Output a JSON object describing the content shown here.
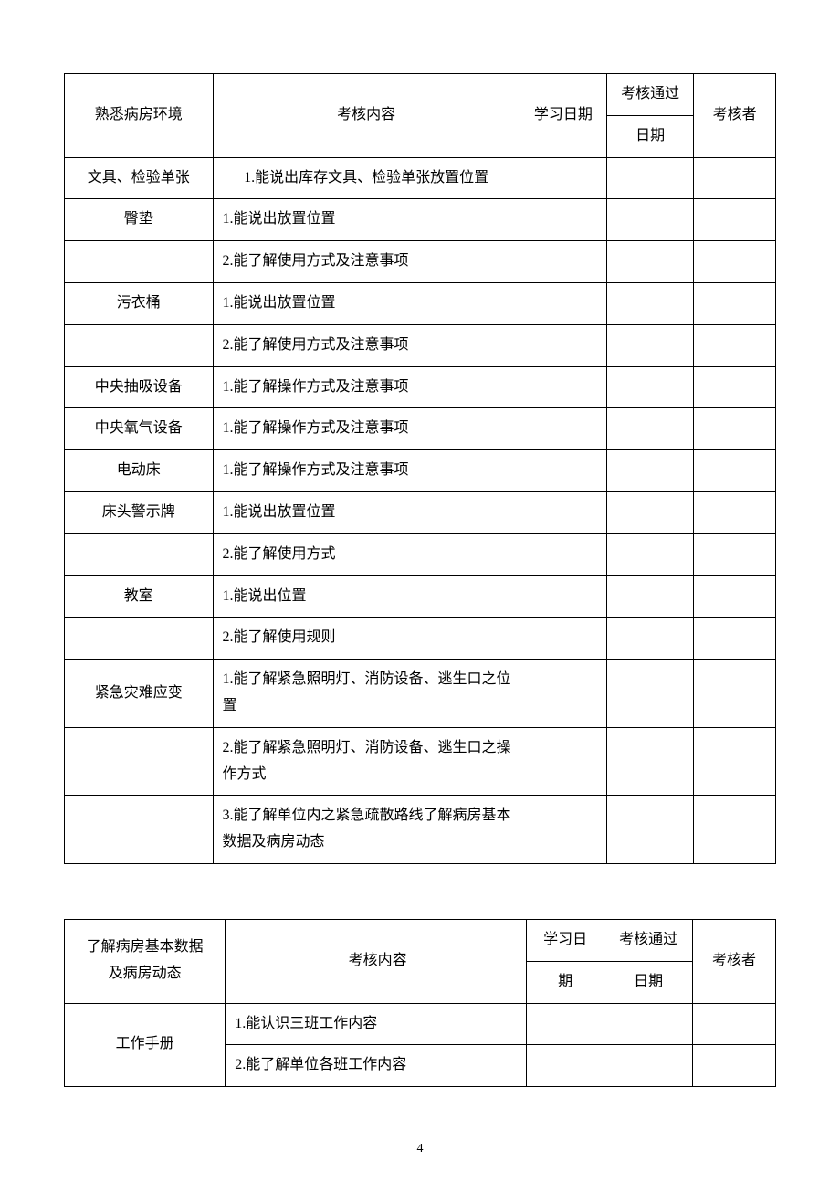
{
  "table1": {
    "headers": {
      "category": "熟悉病房环境",
      "content": "考核内容",
      "study_date": "学习日期",
      "pass_date_line1": "考核通过",
      "pass_date_line2": "日期",
      "assessor": "考核者"
    },
    "rows": [
      {
        "category": "文具、检验单张",
        "content": "1.能说出库存文具、检验单张放置位置",
        "center": true
      },
      {
        "category": "臀垫",
        "content": "1.能说出放置位置"
      },
      {
        "category": "",
        "content": "2.能了解使用方式及注意事项"
      },
      {
        "category": "污衣桶",
        "content": "1.能说出放置位置"
      },
      {
        "category": "",
        "content": "2.能了解使用方式及注意事项"
      },
      {
        "category": "中央抽吸设备",
        "content": "1.能了解操作方式及注意事项"
      },
      {
        "category": "中央氧气设备",
        "content": "1.能了解操作方式及注意事项"
      },
      {
        "category": "电动床",
        "content": "1.能了解操作方式及注意事项"
      },
      {
        "category": "床头警示牌",
        "content": "1.能说出放置位置"
      },
      {
        "category": "",
        "content": "2.能了解使用方式"
      },
      {
        "category": "教室",
        "content": "1.能说出位置"
      },
      {
        "category": "",
        "content": "2.能了解使用规则"
      },
      {
        "category": "紧急灾难应变",
        "content": "1.能了解紧急照明灯、消防设备、逃生口之位置"
      },
      {
        "category": "",
        "content": "2.能了解紧急照明灯、消防设备、逃生口之操作方式"
      },
      {
        "category": "",
        "content": "3.能了解单位内之紧急疏散路线了解病房基本数据及病房动态"
      }
    ]
  },
  "table2": {
    "headers": {
      "category_line1": "了解病房基本数据",
      "category_line2": "及病房动态",
      "content": "考核内容",
      "study_date_line1": "学习日",
      "study_date_line2": "期",
      "pass_date_line1": "考核通过",
      "pass_date_line2": "日期",
      "assessor": "考核者"
    },
    "rows": [
      {
        "category": "工作手册",
        "content": "1.能认识三班工作内容",
        "rowspan": 2
      },
      {
        "content": "2.能了解单位各班工作内容"
      }
    ]
  },
  "page_number": "4"
}
